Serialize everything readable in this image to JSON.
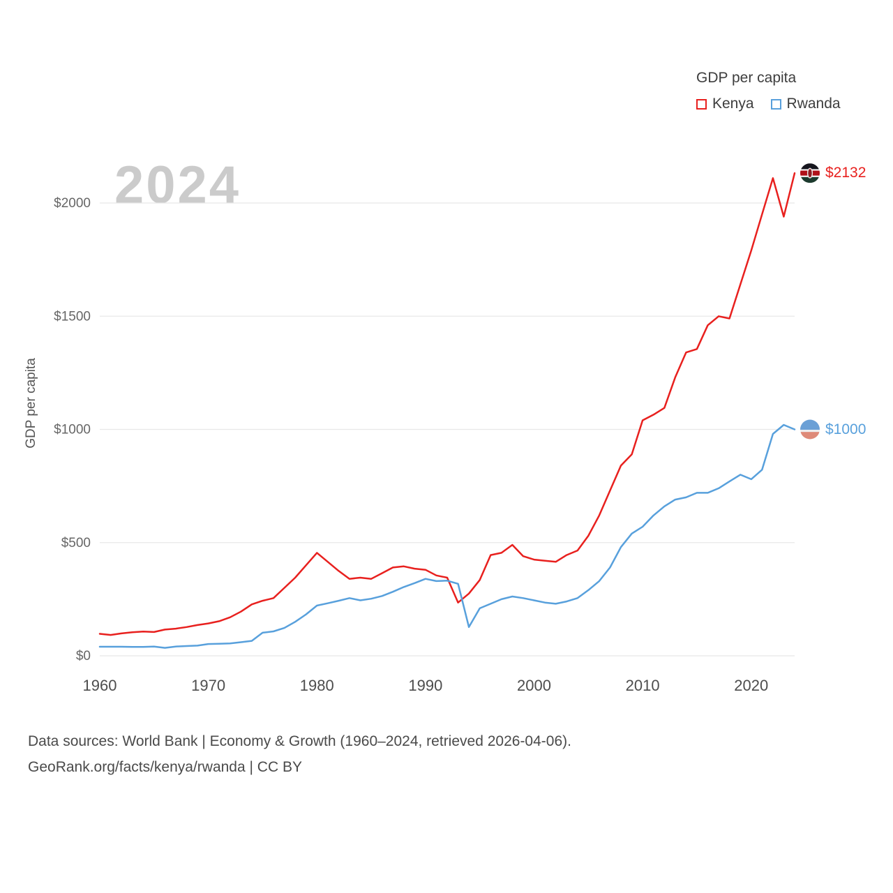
{
  "legend": {
    "title": "GDP per capita",
    "items": [
      {
        "label": "Kenya",
        "color": "#e8201e"
      },
      {
        "label": "Rwanda",
        "color": "#58a0dc"
      }
    ]
  },
  "watermark": "2024",
  "y_axis_title": "GDP per capita",
  "footer": {
    "line1": "Data sources: World Bank | Economy & Growth (1960–2024, retrieved 2026-04-06).",
    "line2": "GeoRank.org/facts/kenya/rwanda | CC BY"
  },
  "chart_data": {
    "type": "line",
    "title": "GDP per capita",
    "xlabel": "",
    "ylabel": "GDP per capita",
    "x_start": 1960,
    "x_end": 2024,
    "x_step": 1,
    "xlim": [
      1960,
      2024
    ],
    "ylim": [
      0,
      2200
    ],
    "grid": "horizontal",
    "legend_position": "top-right",
    "yticks": [
      {
        "value": 0,
        "label": "$0"
      },
      {
        "value": 500,
        "label": "$500"
      },
      {
        "value": 1000,
        "label": "$1000"
      },
      {
        "value": 1500,
        "label": "$1500"
      },
      {
        "value": 2000,
        "label": "$2000"
      }
    ],
    "xticks": [
      {
        "value": 1960,
        "label": "1960"
      },
      {
        "value": 1970,
        "label": "1970"
      },
      {
        "value": 1980,
        "label": "1980"
      },
      {
        "value": 1990,
        "label": "1990"
      },
      {
        "value": 2000,
        "label": "2000"
      },
      {
        "value": 2010,
        "label": "2010"
      },
      {
        "value": 2020,
        "label": "2020"
      }
    ],
    "series": [
      {
        "name": "Kenya",
        "color": "#e8201e",
        "flag": "kenya",
        "end_value": 2132,
        "end_label": "$2132",
        "values": [
          97,
          92,
          99,
          104,
          107,
          105,
          116,
          120,
          127,
          136,
          143,
          153,
          170,
          195,
          227,
          243,
          255,
          300,
          345,
          400,
          455,
          415,
          375,
          340,
          345,
          340,
          365,
          390,
          395,
          385,
          380,
          355,
          345,
          235,
          275,
          335,
          445,
          455,
          490,
          440,
          425,
          420,
          415,
          445,
          465,
          530,
          620,
          730,
          840,
          890,
          1040,
          1065,
          1095,
          1230,
          1340,
          1355,
          1460,
          1500,
          1490,
          1640,
          1790,
          1950,
          2110,
          1940,
          2132
        ]
      },
      {
        "name": "Rwanda",
        "color": "#58a0dc",
        "flag": "rwanda",
        "end_value": 1000,
        "end_label": "$1000",
        "values": [
          40,
          40,
          40,
          39,
          39,
          41,
          35,
          41,
          43,
          45,
          52,
          53,
          55,
          60,
          66,
          102,
          108,
          123,
          150,
          183,
          222,
          232,
          243,
          255,
          245,
          252,
          264,
          283,
          304,
          321,
          340,
          330,
          332,
          318,
          127,
          210,
          230,
          250,
          262,
          255,
          245,
          235,
          230,
          240,
          255,
          290,
          330,
          390,
          480,
          540,
          570,
          620,
          660,
          690,
          700,
          720,
          720,
          740,
          770,
          800,
          780,
          822,
          980,
          1020,
          1000
        ]
      }
    ]
  }
}
